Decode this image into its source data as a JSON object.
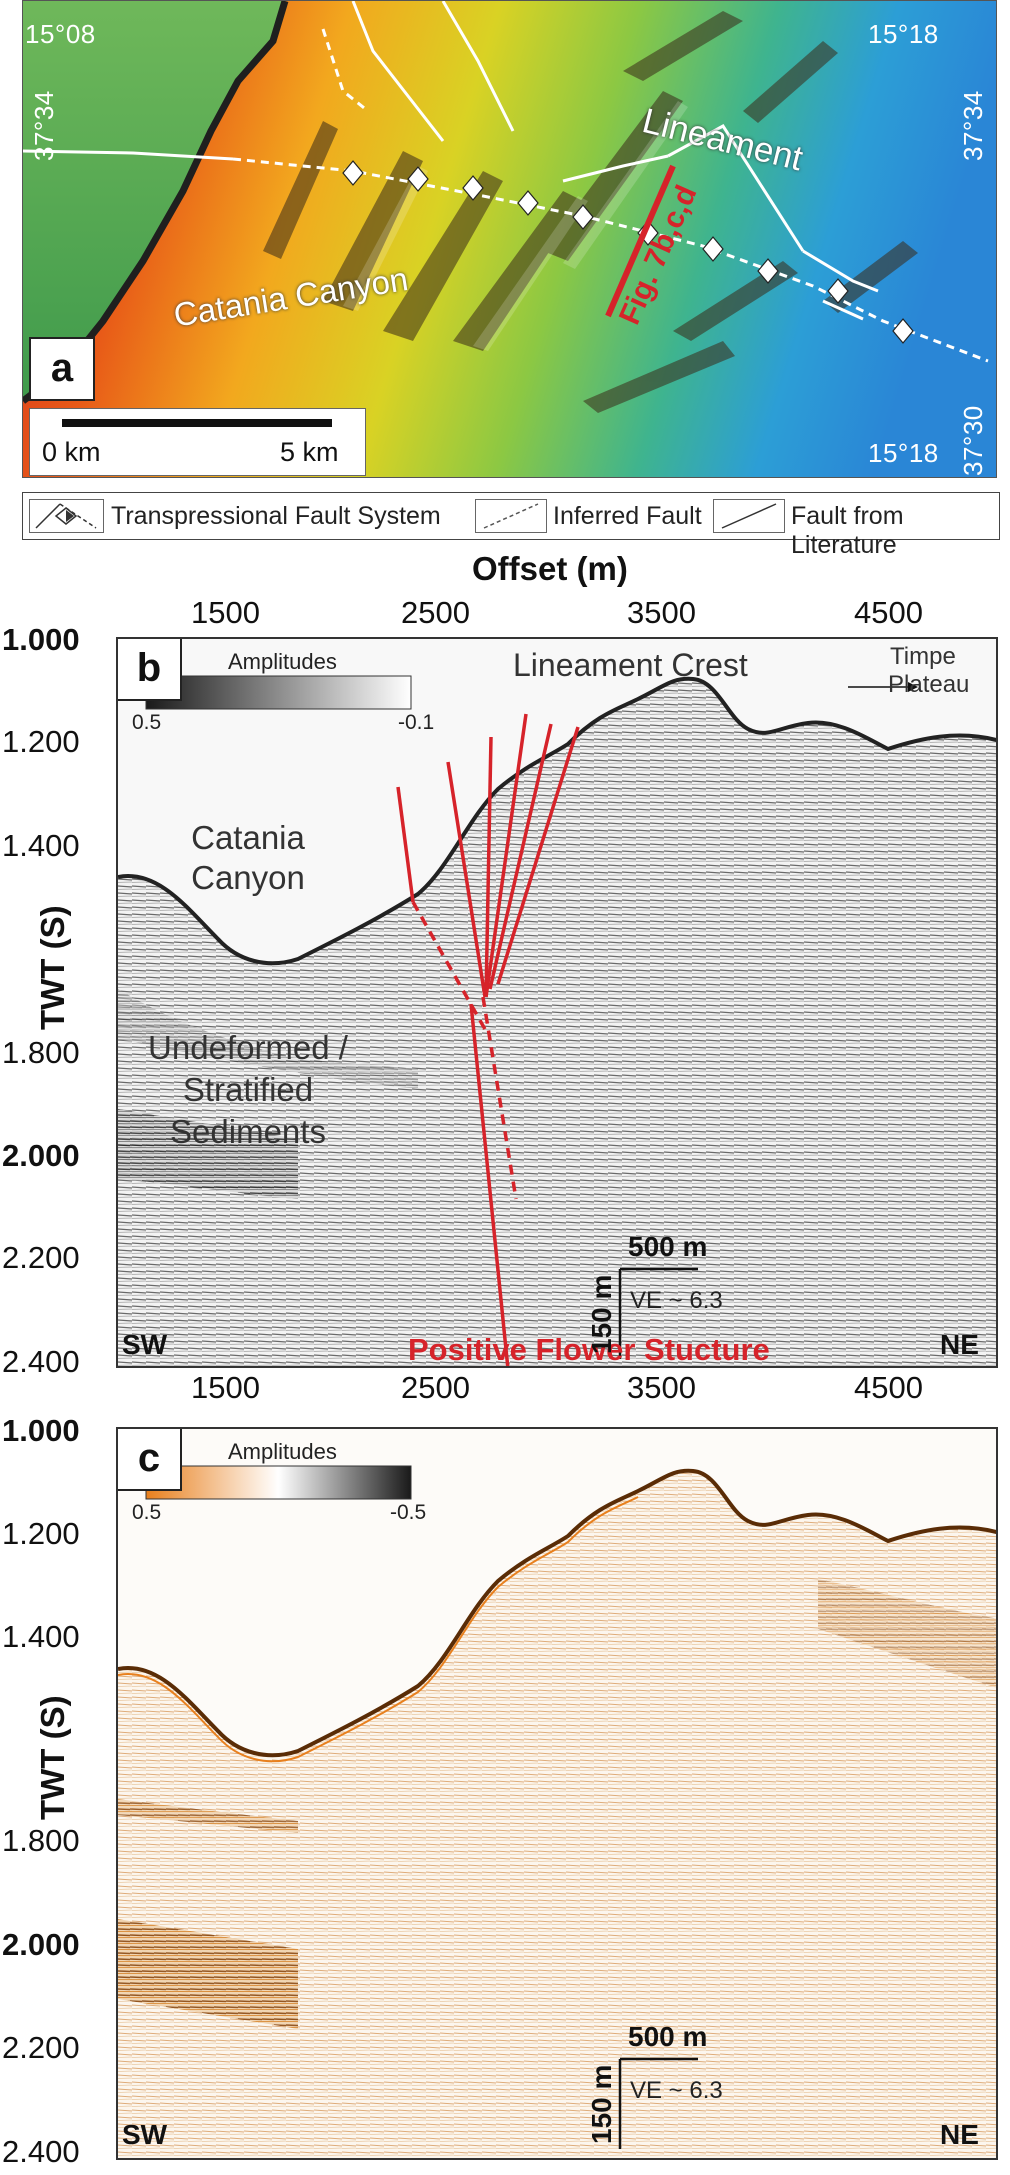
{
  "panel_a": {
    "letter": "a",
    "coords": {
      "top_left_lon": "15°08",
      "top_left_lat": "37°34",
      "top_right_lon": "15°18",
      "top_right_lat": "37°34",
      "bottom_right_lon": "15°18",
      "bottom_right_lat": "37°30"
    },
    "labels": {
      "canyon": "Catania Canyon",
      "lineament": "Lineament",
      "fig_ref": "Fig. 7b,c,d"
    },
    "scalebar": {
      "start": "0 km",
      "end": "5 km"
    }
  },
  "legend": {
    "items": [
      {
        "label": "Transpressional Fault System",
        "icon": "transpressional-fault-symbol"
      },
      {
        "label": "Inferred Fault",
        "icon": "inferred-fault-symbol"
      },
      {
        "label": "Fault from Literature",
        "icon": "literature-fault-symbol"
      }
    ]
  },
  "panel_b": {
    "letter": "b",
    "x_title": "Offset (m)",
    "x_ticks": [
      "1500",
      "2500",
      "3500",
      "4500"
    ],
    "y_title": "TWT (S)",
    "y_ticks": [
      "1.000",
      "1.200",
      "1.400",
      "1.800",
      "2.000",
      "2.200",
      "2.400"
    ],
    "colorbar": {
      "title": "Amplitudes",
      "min": "0.5",
      "max": "-0.1",
      "colors": [
        "#1a1a1a",
        "#ffffff"
      ]
    },
    "labels": {
      "lineament_crest": "Lineament Crest",
      "timpe_plateau_1": "Timpe",
      "timpe_plateau_2": "Plateau",
      "catania_1": "Catania",
      "catania_2": "Canyon",
      "undeformed_1": "Undeformed /",
      "undeformed_2": "Stratified",
      "undeformed_3": "Sediments",
      "flower": "Positive Flower Stucture",
      "sw": "SW",
      "ne": "NE",
      "scale_h": "500 m",
      "scale_v": "150 m",
      "ve": "VE ~ 6.3"
    },
    "fault_color": "#d6232a"
  },
  "panel_c": {
    "letter": "c",
    "x_ticks": [
      "1500",
      "2500",
      "3500",
      "4500"
    ],
    "y_title": "TWT (S)",
    "y_ticks": [
      "1.000",
      "1.200",
      "1.400",
      "1.800",
      "2.000",
      "2.200",
      "2.400"
    ],
    "colorbar": {
      "title": "Amplitudes",
      "min": "0.5",
      "max": "-0.5",
      "colors": [
        "#e8801e",
        "#ffffff",
        "#1a1a1a"
      ]
    },
    "labels": {
      "sw": "SW",
      "ne": "NE",
      "scale_h": "500 m",
      "scale_v": "150 m",
      "ve": "VE ~ 6.3"
    }
  }
}
